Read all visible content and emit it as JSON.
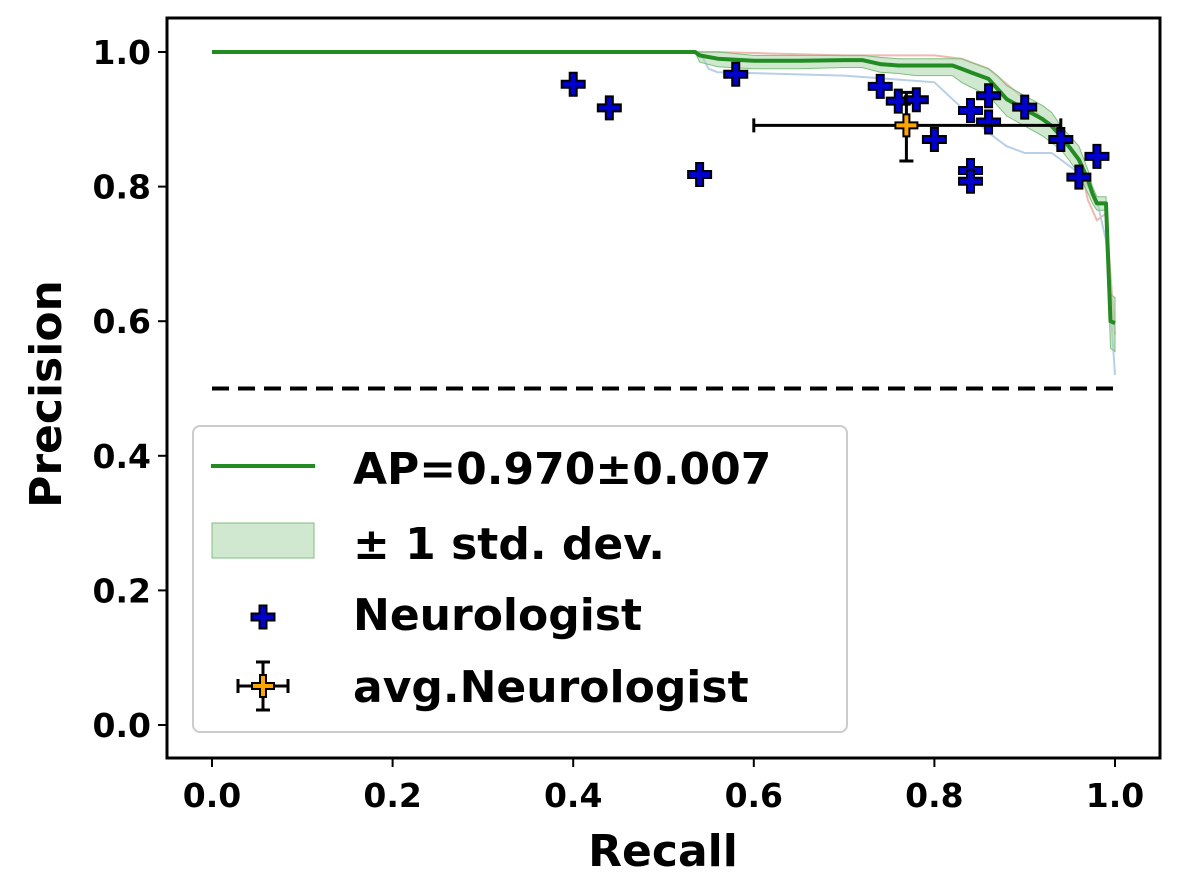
{
  "chart_data": {
    "type": "line",
    "title": "",
    "xlabel": "Recall",
    "ylabel": "Precision",
    "xlim": [
      -0.05,
      1.05
    ],
    "ylim": [
      -0.05,
      1.05
    ],
    "xticks": [
      "0.0",
      "0.2",
      "0.4",
      "0.6",
      "0.8",
      "1.0"
    ],
    "yticks": [
      "0.0",
      "0.2",
      "0.4",
      "0.6",
      "0.8",
      "1.0"
    ],
    "grid": false,
    "legend_position": "lower-left",
    "colors": {
      "curve": "#228b22",
      "band": "#a8d5a8",
      "neurologist_fill": "#0000cc",
      "avg_fill": "#ffa500",
      "baseline": "#000000",
      "fold_red": "#f2b8b0",
      "fold_blue": "#b8cfe8"
    },
    "legend": {
      "curve_label": "AP=0.970±0.007",
      "band_label": "± 1 std. dev.",
      "neurologist_label": "Neurologist",
      "avg_label": "avg.Neurologist"
    },
    "pr_curve": {
      "recall": [
        0.0,
        0.535,
        0.54,
        0.56,
        0.6,
        0.65,
        0.7,
        0.72,
        0.74,
        0.76,
        0.78,
        0.82,
        0.83,
        0.84,
        0.86,
        0.87,
        0.88,
        0.9,
        0.92,
        0.93,
        0.94,
        0.95,
        0.96,
        0.97,
        0.975,
        0.98,
        0.99,
        0.995,
        1.0
      ],
      "precision": [
        1.0,
        1.0,
        0.995,
        0.99,
        0.987,
        0.987,
        0.988,
        0.988,
        0.982,
        0.98,
        0.98,
        0.98,
        0.975,
        0.97,
        0.96,
        0.945,
        0.93,
        0.915,
        0.9,
        0.89,
        0.875,
        0.858,
        0.84,
        0.81,
        0.79,
        0.775,
        0.775,
        0.6,
        0.597
      ],
      "std_upper": [
        1.0,
        1.0,
        1.0,
        1.0,
        0.995,
        0.995,
        0.995,
        0.995,
        0.992,
        0.99,
        0.99,
        0.99,
        0.99,
        0.985,
        0.975,
        0.965,
        0.95,
        0.935,
        0.92,
        0.91,
        0.89,
        0.875,
        0.86,
        0.825,
        0.8,
        0.785,
        0.785,
        0.64,
        0.635
      ],
      "std_lower": [
        1.0,
        1.0,
        0.985,
        0.978,
        0.975,
        0.975,
        0.977,
        0.977,
        0.97,
        0.968,
        0.965,
        0.965,
        0.955,
        0.948,
        0.935,
        0.92,
        0.905,
        0.89,
        0.875,
        0.865,
        0.855,
        0.838,
        0.818,
        0.79,
        0.775,
        0.765,
        0.765,
        0.56,
        0.555
      ]
    },
    "fold_curves": [
      {
        "color": "red",
        "recall": [
          0.0,
          0.54,
          0.56,
          0.7,
          0.8,
          0.83,
          0.86,
          0.9,
          0.92,
          0.95,
          0.96,
          0.97,
          0.98,
          0.99,
          1.0
        ],
        "precision": [
          1.0,
          1.0,
          1.0,
          0.995,
          0.995,
          0.99,
          0.975,
          0.93,
          0.9,
          0.86,
          0.84,
          0.78,
          0.75,
          0.76,
          0.58
        ]
      },
      {
        "color": "blue",
        "recall": [
          0.0,
          0.54,
          0.55,
          0.56,
          0.7,
          0.8,
          0.86,
          0.88,
          0.9,
          0.93,
          0.96,
          0.98,
          0.99,
          1.0
        ],
        "precision": [
          1.0,
          1.0,
          0.975,
          0.97,
          0.965,
          0.955,
          0.88,
          0.86,
          0.85,
          0.85,
          0.82,
          0.78,
          0.72,
          0.52
        ]
      }
    ],
    "chance_level": 0.5,
    "neurologists": [
      {
        "recall": 0.4,
        "precision": 0.952
      },
      {
        "recall": 0.44,
        "precision": 0.917
      },
      {
        "recall": 0.54,
        "precision": 0.818
      },
      {
        "recall": 0.58,
        "precision": 0.967
      },
      {
        "recall": 0.74,
        "precision": 0.949
      },
      {
        "recall": 0.76,
        "precision": 0.927
      },
      {
        "recall": 0.78,
        "precision": 0.929
      },
      {
        "recall": 0.8,
        "precision": 0.87
      },
      {
        "recall": 0.84,
        "precision": 0.913
      },
      {
        "recall": 0.84,
        "precision": 0.824
      },
      {
        "recall": 0.84,
        "precision": 0.808
      },
      {
        "recall": 0.86,
        "precision": 0.935
      },
      {
        "recall": 0.86,
        "precision": 0.896
      },
      {
        "recall": 0.9,
        "precision": 0.918
      },
      {
        "recall": 0.94,
        "precision": 0.87
      },
      {
        "recall": 0.96,
        "precision": 0.814
      },
      {
        "recall": 0.98,
        "precision": 0.845
      }
    ],
    "avg_neurologist": {
      "recall": 0.769,
      "precision": 0.891,
      "recall_err": [
        0.6,
        0.94
      ],
      "precision_err": [
        0.838,
        0.94
      ]
    }
  }
}
